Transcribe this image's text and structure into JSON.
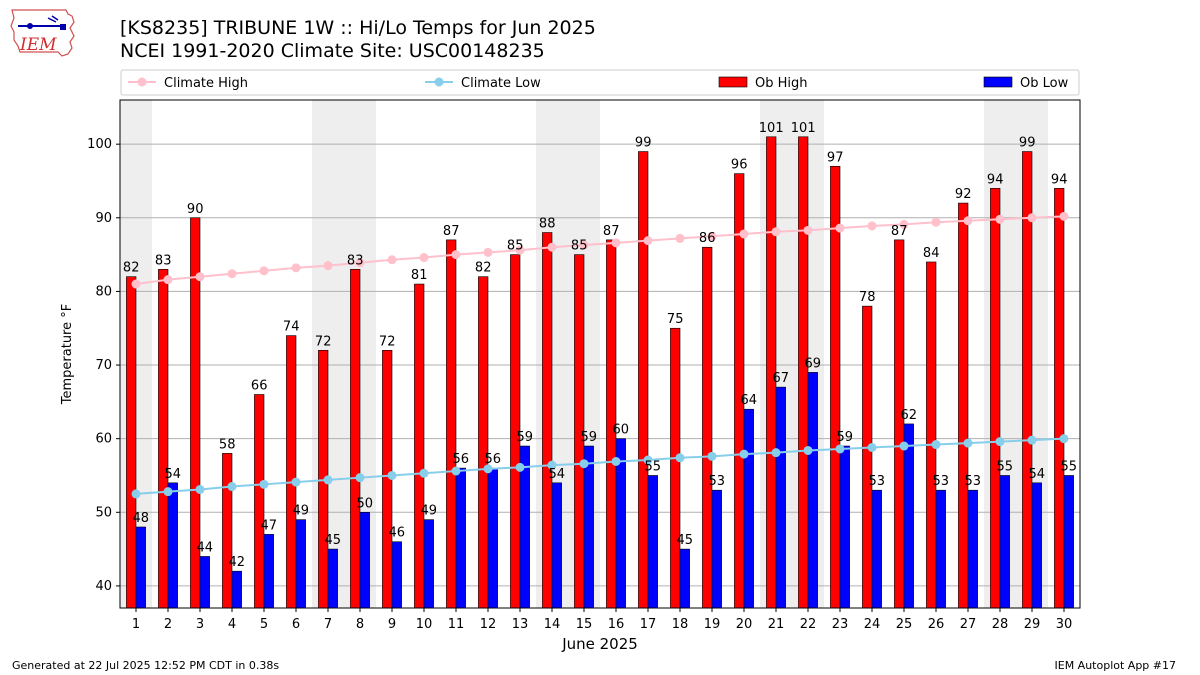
{
  "header": {
    "title_line1": "[KS8235] TRIBUNE 1W :: Hi/Lo Temps for Jun 2025",
    "title_line2": "NCEI 1991-2020 Climate Site: USC00148235",
    "logo_text": "IEM"
  },
  "footer": {
    "left": "Generated at 22 Jul 2025 12:52 PM CDT in 0.38s",
    "right": "IEM Autoplot App #17"
  },
  "colors": {
    "ob_high": "#ff0000",
    "ob_low": "#0000ff",
    "climate_high": "#ffc0cb",
    "climate_low": "#87ceeb",
    "weekend_shade": "#eeeeee",
    "grid": "#b0b0b0"
  },
  "chart_data": {
    "type": "bar",
    "xlabel": "June 2025",
    "ylabel": "Temperature °F",
    "ylim": [
      37,
      106
    ],
    "yticks": [
      40,
      50,
      60,
      70,
      80,
      90,
      100
    ],
    "grid": "horizontal",
    "legend_placement": "top",
    "categories": [
      "1",
      "2",
      "3",
      "4",
      "5",
      "6",
      "7",
      "8",
      "9",
      "10",
      "11",
      "12",
      "13",
      "14",
      "15",
      "16",
      "17",
      "18",
      "19",
      "20",
      "21",
      "22",
      "23",
      "24",
      "25",
      "26",
      "27",
      "28",
      "29",
      "30"
    ],
    "shaded_days": [
      "1",
      "7",
      "8",
      "14",
      "15",
      "21",
      "22",
      "28",
      "29"
    ],
    "series": [
      {
        "name": "Climate High",
        "kind": "line",
        "values": [
          81.0,
          81.6,
          82.0,
          82.4,
          82.8,
          83.2,
          83.5,
          83.9,
          84.3,
          84.6,
          85.0,
          85.3,
          85.6,
          86.0,
          86.3,
          86.6,
          86.9,
          87.2,
          87.5,
          87.8,
          88.1,
          88.3,
          88.6,
          88.9,
          89.1,
          89.4,
          89.6,
          89.8,
          90.0,
          90.2
        ]
      },
      {
        "name": "Climate Low",
        "kind": "line",
        "values": [
          52.5,
          52.8,
          53.1,
          53.5,
          53.8,
          54.1,
          54.4,
          54.7,
          55.0,
          55.3,
          55.6,
          55.9,
          56.1,
          56.4,
          56.6,
          56.9,
          57.1,
          57.4,
          57.6,
          57.9,
          58.1,
          58.4,
          58.6,
          58.8,
          59.0,
          59.2,
          59.4,
          59.6,
          59.8,
          60.0
        ]
      },
      {
        "name": "Ob High",
        "kind": "bar",
        "values": [
          82,
          83,
          90,
          58,
          66,
          74,
          72,
          83,
          72,
          81,
          87,
          82,
          85,
          88,
          85,
          87,
          99,
          75,
          86,
          96,
          101,
          101,
          97,
          78,
          87,
          84,
          92,
          94,
          99,
          94
        ]
      },
      {
        "name": "Ob Low",
        "kind": "bar",
        "values": [
          48,
          54,
          44,
          42,
          47,
          49,
          45,
          50,
          46,
          49,
          56,
          56,
          59,
          54,
          59,
          60,
          55,
          45,
          53,
          64,
          67,
          69,
          59,
          53,
          62,
          53,
          53,
          55,
          54,
          55
        ]
      }
    ]
  }
}
